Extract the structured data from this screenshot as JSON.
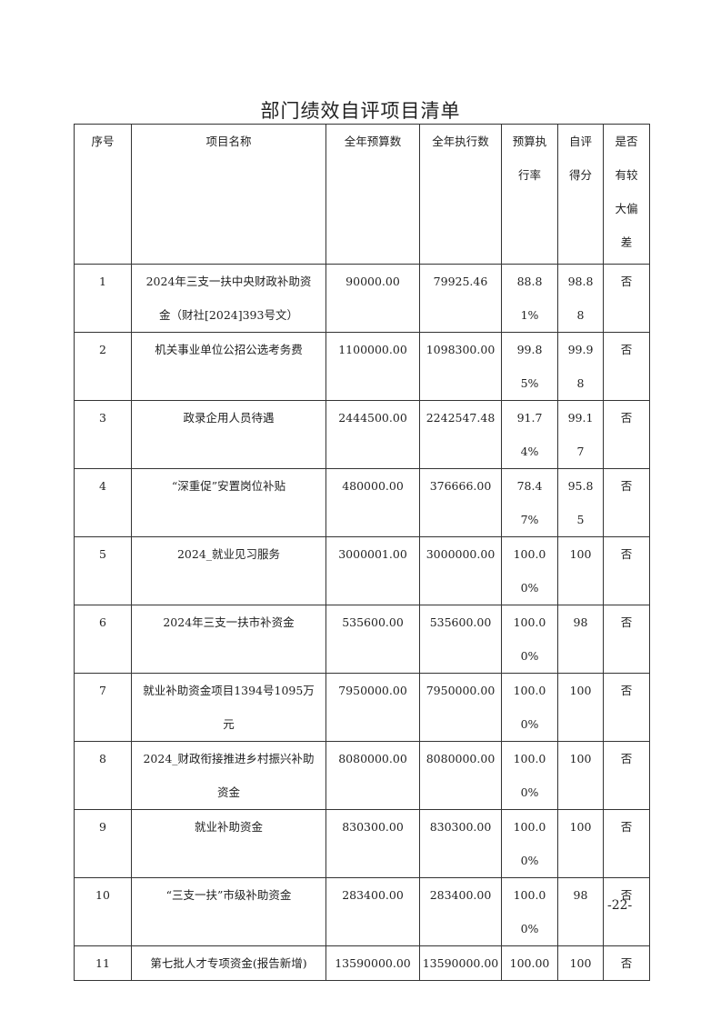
{
  "title": "部门绩效自评项目清单",
  "headers": [
    "序号",
    "项目名称",
    "全年预算数",
    "全年执行数",
    "预算执行率",
    "自评得分",
    "是否有较大偏差"
  ],
  "rows": [
    {
      "no": "1",
      "name": "2024年三支一扶中央财政补助资金（财社[2024]393号文）",
      "budget": "90000.00",
      "executed": "79925.46",
      "rate": "88.81%",
      "score": "98.88",
      "deviation": "否"
    },
    {
      "no": "2",
      "name": "机关事业单位公招公选考务费",
      "budget": "1100000.00",
      "executed": "1098300.00",
      "rate": "99.85%",
      "score": "99.98",
      "deviation": "否"
    },
    {
      "no": "3",
      "name": "政录企用人员待遇",
      "budget": "2444500.00",
      "executed": "2242547.48",
      "rate": "91.74%",
      "score": "99.17",
      "deviation": "否"
    },
    {
      "no": "4",
      "name": "“深重促”安置岗位补贴",
      "budget": "480000.00",
      "executed": "376666.00",
      "rate": "78.47%",
      "score": "95.85",
      "deviation": "否"
    },
    {
      "no": "5",
      "name": "2024_就业见习服务",
      "budget": "3000001.00",
      "executed": "3000000.00",
      "rate": "100.00%",
      "score": "100",
      "deviation": "否"
    },
    {
      "no": "6",
      "name": "2024年三支一扶市补资金",
      "budget": "535600.00",
      "executed": "535600.00",
      "rate": "100.00%",
      "score": "98",
      "deviation": "否"
    },
    {
      "no": "7",
      "name": "就业补助资金项目1394号1095万元",
      "budget": "7950000.00",
      "executed": "7950000.00",
      "rate": "100.00%",
      "score": "100",
      "deviation": "否"
    },
    {
      "no": "8",
      "name": "2024_财政衔接推进乡村振兴补助资金",
      "budget": "8080000.00",
      "executed": "8080000.00",
      "rate": "100.00%",
      "score": "100",
      "deviation": "否"
    },
    {
      "no": "9",
      "name": "就业补助资金",
      "budget": "830300.00",
      "executed": "830300.00",
      "rate": "100.00%",
      "score": "100",
      "deviation": "否"
    },
    {
      "no": "10",
      "name": "“三支一扶”市级补助资金",
      "budget": "283400.00",
      "executed": "283400.00",
      "rate": "100.00%",
      "score": "98",
      "deviation": "否"
    },
    {
      "no": "11",
      "name": "第七批人才专项资金(报告新增)",
      "budget": "13590000.00",
      "executed": "13590000.00",
      "rate": "100.00",
      "score": "100",
      "deviation": "否"
    }
  ],
  "page_number": "-22-"
}
